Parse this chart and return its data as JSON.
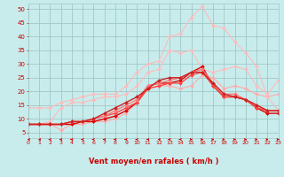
{
  "x": [
    0,
    1,
    2,
    3,
    4,
    5,
    6,
    7,
    8,
    9,
    10,
    11,
    12,
    13,
    14,
    15,
    16,
    17,
    18,
    19,
    20,
    21,
    22,
    23
  ],
  "series": [
    {
      "color": "#ffaaaa",
      "lw": 0.8,
      "marker": "D",
      "ms": 2.0,
      "values": [
        8,
        8,
        8,
        6,
        8,
        8,
        9,
        9,
        10,
        12,
        16,
        21,
        22,
        22,
        21,
        22,
        26,
        25,
        21,
        22,
        21,
        19,
        18,
        19
      ]
    },
    {
      "color": "#ffbbbb",
      "lw": 0.8,
      "marker": "D",
      "ms": 2.0,
      "values": [
        8,
        8,
        9,
        14,
        16,
        16,
        17,
        18,
        18,
        19,
        22,
        27,
        28,
        35,
        34,
        35,
        28,
        27,
        28,
        29,
        28,
        22,
        19,
        24
      ]
    },
    {
      "color": "#ffbbbb",
      "lw": 0.8,
      "marker": "D",
      "ms": 2.0,
      "values": [
        14,
        14,
        14,
        16,
        17,
        18,
        19,
        19,
        19,
        22,
        27,
        30,
        31,
        40,
        41,
        47,
        51,
        44,
        43,
        38,
        34,
        29,
        18,
        13
      ]
    },
    {
      "color": "#dd0000",
      "lw": 1.0,
      "marker": "D",
      "ms": 2.0,
      "values": [
        8,
        8,
        8,
        8,
        8,
        9,
        9,
        10,
        11,
        13,
        16,
        22,
        23,
        23,
        24,
        27,
        29,
        22,
        18,
        18,
        17,
        14,
        12,
        12
      ]
    },
    {
      "color": "#ff4444",
      "lw": 1.0,
      "marker": "D",
      "ms": 2.0,
      "values": [
        8,
        8,
        8,
        8,
        9,
        9,
        10,
        11,
        12,
        14,
        16,
        21,
        22,
        23,
        23,
        26,
        27,
        22,
        18,
        18,
        17,
        14,
        13,
        13
      ]
    },
    {
      "color": "#ff7777",
      "lw": 1.0,
      "marker": "D",
      "ms": 2.0,
      "values": [
        8,
        8,
        8,
        8,
        9,
        9,
        10,
        11,
        13,
        15,
        17,
        22,
        23,
        24,
        25,
        27,
        28,
        23,
        19,
        19,
        17,
        15,
        13,
        13
      ]
    },
    {
      "color": "#cc2222",
      "lw": 1.0,
      "marker": "D",
      "ms": 2.0,
      "values": [
        8,
        8,
        8,
        8,
        9,
        9,
        10,
        12,
        14,
        16,
        18,
        21,
        24,
        25,
        25,
        27,
        27,
        23,
        19,
        18,
        17,
        15,
        13,
        13
      ]
    }
  ],
  "background_color": "#c8ecec",
  "grid_color": "#a0c8c8",
  "xlabel": "Vent moyen/en rafales ( km/h )",
  "yticks": [
    5,
    10,
    15,
    20,
    25,
    30,
    35,
    40,
    45,
    50
  ],
  "xlim": [
    0,
    23
  ],
  "ylim": [
    3,
    52
  ],
  "label_color": "#cc0000",
  "tick_color": "#cc0000"
}
